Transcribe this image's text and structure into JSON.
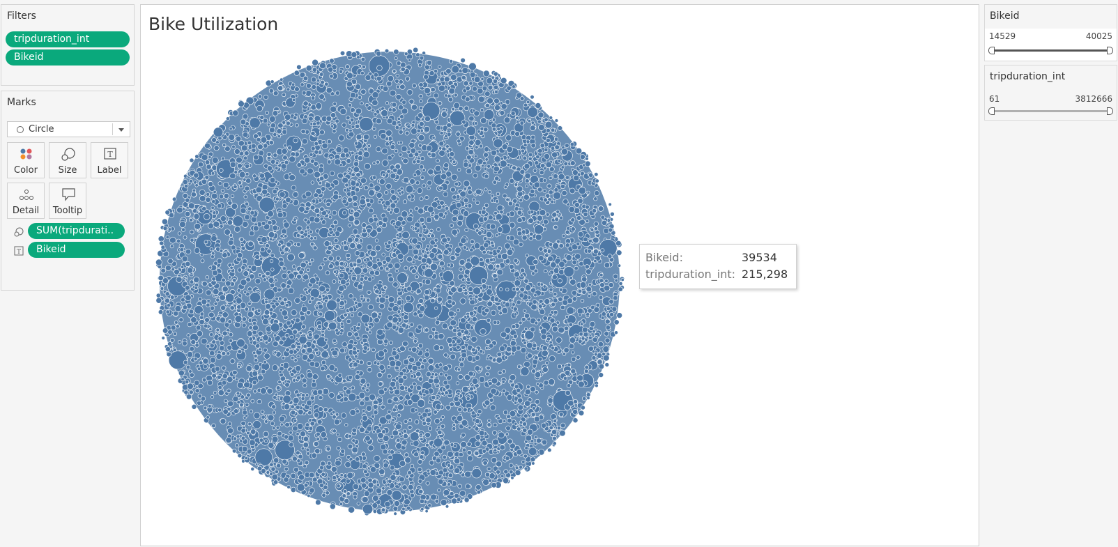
{
  "filters": {
    "title": "Filters",
    "pills": [
      "tripduration_int",
      "Bikeid"
    ]
  },
  "marks": {
    "title": "Marks",
    "mark_type": "Circle",
    "buttons": [
      {
        "label": "Color",
        "icon": "color-dots-icon"
      },
      {
        "label": "Size",
        "icon": "size-icon"
      },
      {
        "label": "Label",
        "icon": "label-text-icon"
      },
      {
        "label": "Detail",
        "icon": "detail-dots-icon"
      },
      {
        "label": "Tooltip",
        "icon": "tooltip-speech-icon"
      }
    ],
    "shelf": [
      {
        "icon": "size-icon",
        "field": "SUM(tripdurati.."
      },
      {
        "icon": "label-text-icon",
        "field": "Bikeid"
      }
    ]
  },
  "viz": {
    "title": "Bike Utilization",
    "mark_color": "#4e79a7"
  },
  "chart_data": {
    "type": "packed-bubble",
    "size_measure": "SUM(tripduration_int)",
    "label_dimension": "Bikeid",
    "color": "#4e79a7",
    "hovered_point": {
      "Bikeid": 39534,
      "tripduration_int": 215298
    }
  },
  "tooltip": {
    "rows": [
      {
        "key": "Bikeid:",
        "value": "39534"
      },
      {
        "key": "tripduration_int:",
        "value": "215,298"
      }
    ]
  },
  "sliders": [
    {
      "title": "Bikeid",
      "min": "14529",
      "max": "40025",
      "track_color": "#555555"
    },
    {
      "title": "tripduration_int",
      "min": "61",
      "max": "3812666",
      "track_color": "#b0b0b0"
    }
  ]
}
